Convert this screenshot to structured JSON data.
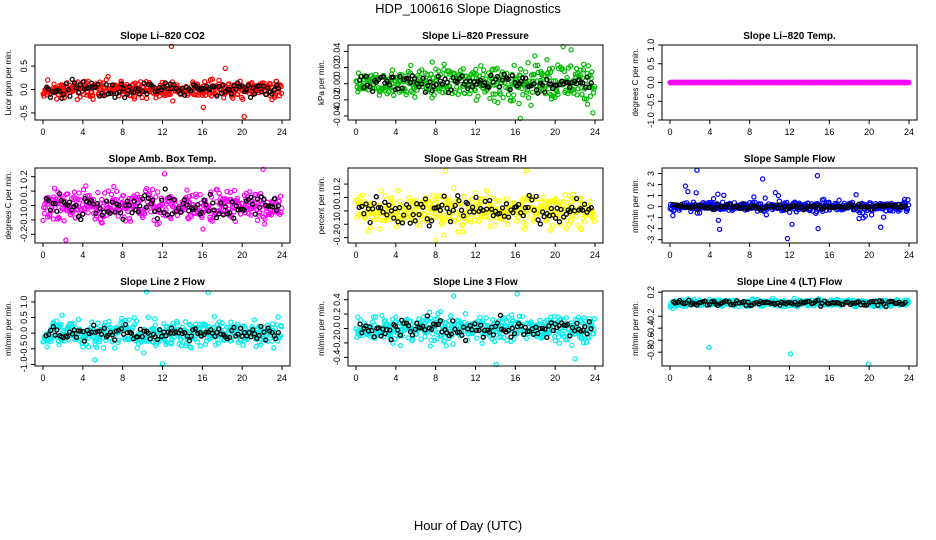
{
  "figure": {
    "title": "HDP_100616  Slope Diagnostics",
    "xlabel": "Hour of Day (UTC)"
  },
  "chart_data": [
    {
      "type": "scatter",
      "title": "Slope Li–820 CO2",
      "ylabel": "Licor ppm per min.",
      "color": "#ff0000",
      "xlim": [
        0,
        24
      ],
      "xticks": [
        "0",
        "4",
        "8",
        "12",
        "16",
        "20",
        "24"
      ],
      "ylim": [
        -0.65,
        0.95
      ],
      "yticks": [
        -0.5,
        0.0,
        0.5
      ],
      "yticklabels": [
        "-0.5",
        "0.0",
        "0.5"
      ],
      "spread": 0.13,
      "black_spread": 0.12,
      "center": 0.0,
      "seed": 11,
      "outliers": [
        {
          "x": 12.9,
          "y": 0.92
        },
        {
          "x": 20.2,
          "y": -0.58
        },
        {
          "x": 18.3,
          "y": 0.45
        },
        {
          "x": 16.1,
          "y": -0.38
        }
      ]
    },
    {
      "type": "scatter",
      "title": "Slope Li–820 Pressure",
      "ylabel": "kPa per min.",
      "color": "#00bb00",
      "xlim": [
        0,
        24
      ],
      "xticks": [
        "0",
        "4",
        "8",
        "12",
        "16",
        "20",
        "24"
      ],
      "ylim": [
        -0.045,
        0.048
      ],
      "yticks": [
        -0.04,
        -0.02,
        0.0,
        0.02,
        0.04
      ],
      "yticklabels": [
        "-0.04",
        "-0.02",
        "0.00",
        "0.02",
        "0.04"
      ],
      "spread": 0.011,
      "black_spread": 0.008,
      "center": 0.001,
      "seed": 23,
      "growth": 1.6,
      "outliers": [
        {
          "x": 20.8,
          "y": 0.046
        },
        {
          "x": 16.5,
          "y": -0.043
        },
        {
          "x": 21.6,
          "y": 0.042
        }
      ]
    },
    {
      "type": "scatter",
      "title": "Slope Li–820 Temp.",
      "ylabel": "degrees C per min.",
      "color": "#ff00ff",
      "xlim": [
        0,
        24
      ],
      "xticks": [
        "0",
        "4",
        "8",
        "12",
        "16",
        "20",
        "24"
      ],
      "ylim": [
        -1.0,
        1.0
      ],
      "yticks": [
        -1.0,
        -0.5,
        0.0,
        0.5,
        1.0
      ],
      "yticklabels": [
        "-1.0",
        "-0.5",
        "0.0",
        "0.5",
        "1.0"
      ],
      "spread": 0.0,
      "black_spread": 0.0,
      "center": 0.0,
      "seed": 5,
      "flat": true,
      "outliers": []
    },
    {
      "type": "scatter",
      "title": "Slope Amb. Box Temp.",
      "ylabel": "degrees C per min.",
      "color": "#ff00ff",
      "xlim": [
        0,
        24
      ],
      "xticks": [
        "0",
        "4",
        "8",
        "12",
        "16",
        "20",
        "24"
      ],
      "ylim": [
        -0.26,
        0.26
      ],
      "yticks": [
        -0.2,
        -0.1,
        0.0,
        0.1,
        0.2
      ],
      "yticklabels": [
        "-0.2",
        "-0.1",
        "0.0",
        "0.1",
        "0.2"
      ],
      "spread": 0.075,
      "black_spread": 0.06,
      "center": 0.0,
      "seed": 37,
      "outliers": [
        {
          "x": 12.2,
          "y": 0.22
        },
        {
          "x": 2.3,
          "y": -0.24
        },
        {
          "x": 22.1,
          "y": 0.25
        }
      ]
    },
    {
      "type": "scatter",
      "title": "Slope Gas Stream RH",
      "ylabel": "percent per min.",
      "color": "#ffff00",
      "xlim": [
        0,
        24
      ],
      "xticks": [
        "0",
        "4",
        "8",
        "12",
        "16",
        "20",
        "24"
      ],
      "ylim": [
        -0.24,
        0.32
      ],
      "yticks": [
        -0.2,
        -0.1,
        0.0,
        0.1,
        0.2
      ],
      "yticklabels": [
        "-0.2",
        "-0.1",
        "0.0",
        "0.1",
        "0.2"
      ],
      "spread": 0.085,
      "black_spread": 0.07,
      "center": 0.0,
      "seed": 41,
      "outliers": [
        {
          "x": 9.0,
          "y": 0.3
        },
        {
          "x": 8.0,
          "y": -0.22
        },
        {
          "x": 17.1,
          "y": 0.3
        }
      ]
    },
    {
      "type": "scatter",
      "title": "Slope Sample Flow",
      "ylabel": "ml/min per min.",
      "color": "#0000ff",
      "xlim": [
        0,
        24
      ],
      "xticks": [
        "0",
        "4",
        "8",
        "12",
        "16",
        "20",
        "24"
      ],
      "ylim": [
        -3.3,
        3.5
      ],
      "yticks": [
        -3,
        -2,
        -1,
        0,
        1,
        2,
        3
      ],
      "yticklabels": [
        "-3",
        "-2",
        "-1",
        "0",
        "1",
        "2",
        "3"
      ],
      "spread": 0.28,
      "black_spread": 0.18,
      "center": 0.0,
      "seed": 53,
      "heavy_tail": true,
      "outliers": [
        {
          "x": 2.7,
          "y": 3.3
        },
        {
          "x": 11.8,
          "y": -2.9
        },
        {
          "x": 14.8,
          "y": 2.8
        },
        {
          "x": 9.3,
          "y": 2.5
        }
      ]
    },
    {
      "type": "scatter",
      "title": "Slope Line 2 Flow",
      "ylabel": "ml/min per min.",
      "color": "#00eeee",
      "xlim": [
        0,
        24
      ],
      "xticks": [
        "0",
        "4",
        "8",
        "12",
        "16",
        "20",
        "24"
      ],
      "ylim": [
        -1.05,
        1.35
      ],
      "yticks": [
        -1.0,
        -0.5,
        0.0,
        0.5,
        1.0
      ],
      "yticklabels": [
        "-1.0",
        "-0.5",
        "0.0",
        "0.5",
        "1.0"
      ],
      "spread": 0.3,
      "black_spread": 0.15,
      "center": 0.0,
      "seed": 67,
      "outliers": [
        {
          "x": 10.4,
          "y": 1.32
        },
        {
          "x": 12.0,
          "y": -0.98
        },
        {
          "x": 16.6,
          "y": 1.3
        },
        {
          "x": 5.2,
          "y": -0.85
        }
      ]
    },
    {
      "type": "scatter",
      "title": "Slope Line 3 Flow",
      "ylabel": "ml/min per min.",
      "color": "#00eeee",
      "xlim": [
        0,
        24
      ],
      "xticks": [
        "0",
        "4",
        "8",
        "12",
        "16",
        "20",
        "24"
      ],
      "ylim": [
        -0.52,
        0.52
      ],
      "yticks": [
        -0.4,
        -0.2,
        0.0,
        0.2,
        0.4
      ],
      "yticklabels": [
        "-0.4",
        "-0.2",
        "0.0",
        "0.2",
        "0.4"
      ],
      "spread": 0.13,
      "black_spread": 0.09,
      "center": 0.0,
      "seed": 79,
      "outliers": [
        {
          "x": 14.1,
          "y": -0.5
        },
        {
          "x": 16.2,
          "y": 0.48
        },
        {
          "x": 9.8,
          "y": 0.45
        },
        {
          "x": 22.0,
          "y": -0.42
        }
      ]
    },
    {
      "type": "scatter",
      "title": "Slope Line 4 (LT) Flow",
      "ylabel": "ml/min per min.",
      "color": "#00eeee",
      "xlim": [
        0,
        24
      ],
      "xticks": [
        "0",
        "4",
        "8",
        "12",
        "16",
        "20",
        "24"
      ],
      "ylim": [
        -1.03,
        0.22
      ],
      "yticks": [
        -0.8,
        -0.6,
        -0.4,
        -0.2,
        0.2
      ],
      "yticklabels": [
        "-0.8",
        "-0.6",
        "-0.4",
        "-0.2",
        "0.2"
      ],
      "spread": 0.04,
      "black_spread": 0.03,
      "center": 0.02,
      "seed": 97,
      "outliers": [
        {
          "x": 3.9,
          "y": -0.72
        },
        {
          "x": 12.1,
          "y": -0.83
        },
        {
          "x": 19.9,
          "y": -1.0
        }
      ]
    }
  ]
}
